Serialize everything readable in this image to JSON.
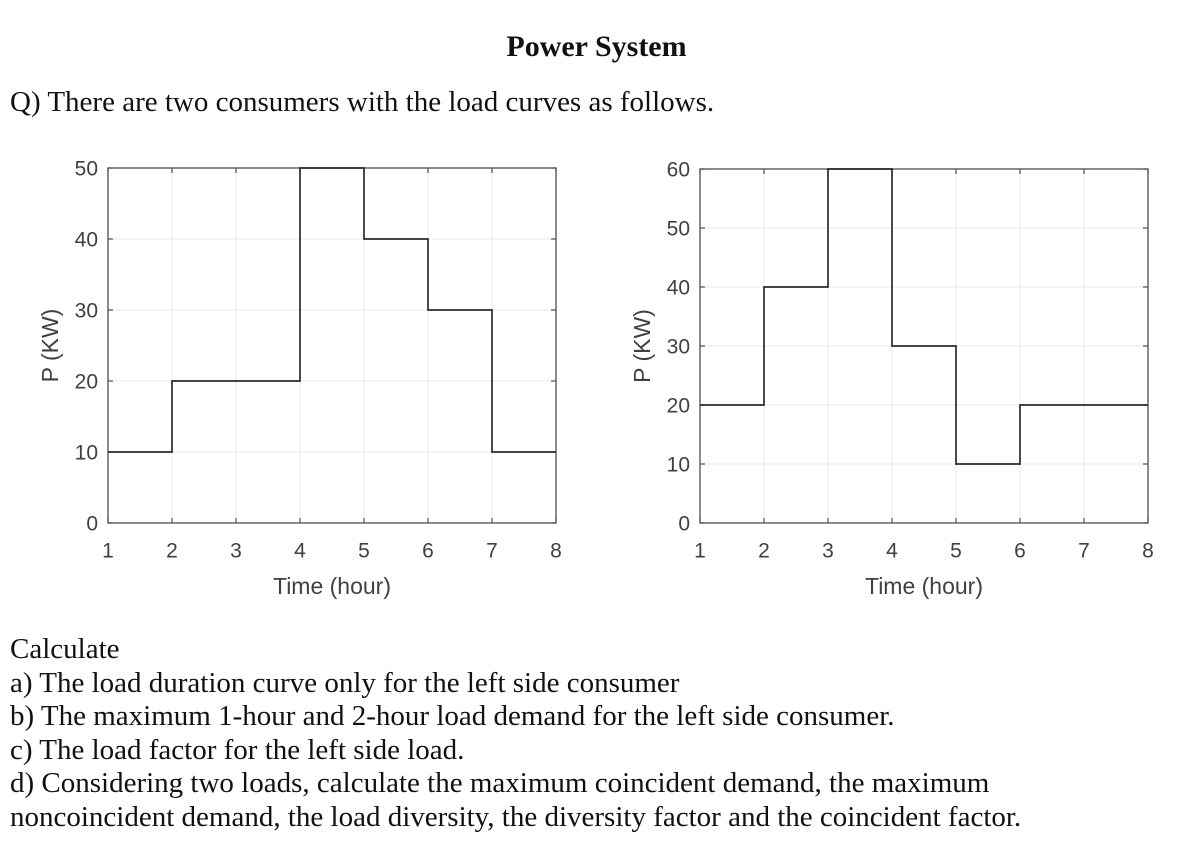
{
  "page": {
    "title": "Power System",
    "question": "Q) There are two consumers with the load curves as follows.",
    "tasks_label": "Calculate",
    "tasks": [
      "a) The load duration curve only for the left side consumer",
      "b) The maximum 1-hour and 2-hour load demand for the left side consumer.",
      "c) The load factor for the left side load.",
      "d) Considering two loads, calculate the maximum coincident demand, the maximum noncoincident demand, the load diversity, the diversity factor and the coincident factor."
    ]
  },
  "chart_data": [
    {
      "name": "left-consumer-load-curve",
      "type": "line",
      "line_style": "step",
      "xlabel": "Time (hour)",
      "ylabel": "P (KW)",
      "xlim": [
        1,
        8
      ],
      "ylim": [
        0,
        50
      ],
      "xticks": [
        1,
        2,
        3,
        4,
        5,
        6,
        7,
        8
      ],
      "yticks": [
        0,
        10,
        20,
        30,
        40,
        50
      ],
      "grid": true,
      "legend": "none",
      "segments": [
        {
          "from_hour": 1,
          "to_hour": 2,
          "p_kw": 10
        },
        {
          "from_hour": 2,
          "to_hour": 4,
          "p_kw": 20
        },
        {
          "from_hour": 4,
          "to_hour": 5,
          "p_kw": 50
        },
        {
          "from_hour": 5,
          "to_hour": 6,
          "p_kw": 40
        },
        {
          "from_hour": 6,
          "to_hour": 7,
          "p_kw": 30
        },
        {
          "from_hour": 7,
          "to_hour": 8,
          "p_kw": 10
        }
      ],
      "line_color": "#2b2b2b",
      "frame_color": "#4d4d4d",
      "grid_color": "#e9e9e9"
    },
    {
      "name": "right-consumer-load-curve",
      "type": "line",
      "line_style": "step",
      "xlabel": "Time (hour)",
      "ylabel": "P (KW)",
      "xlim": [
        1,
        8
      ],
      "ylim": [
        0,
        60
      ],
      "xticks": [
        1,
        2,
        3,
        4,
        5,
        6,
        7,
        8
      ],
      "yticks": [
        0,
        10,
        20,
        30,
        40,
        50,
        60
      ],
      "grid": true,
      "legend": "none",
      "segments": [
        {
          "from_hour": 1,
          "to_hour": 2,
          "p_kw": 20
        },
        {
          "from_hour": 2,
          "to_hour": 3,
          "p_kw": 40
        },
        {
          "from_hour": 3,
          "to_hour": 4,
          "p_kw": 60
        },
        {
          "from_hour": 4,
          "to_hour": 5,
          "p_kw": 30
        },
        {
          "from_hour": 5,
          "to_hour": 6,
          "p_kw": 10
        },
        {
          "from_hour": 6,
          "to_hour": 8,
          "p_kw": 20
        }
      ],
      "line_color": "#2b2b2b",
      "frame_color": "#4d4d4d",
      "grid_color": "#e9e9e9"
    }
  ]
}
